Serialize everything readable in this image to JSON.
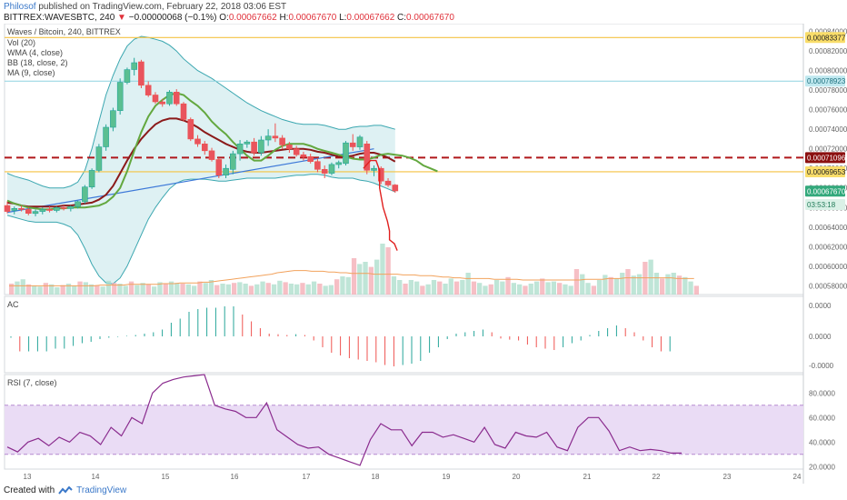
{
  "header": {
    "author": "Philosof",
    "published": "published on TradingView.com, February 22, 2018 03:06 EST",
    "symbol_line": "BITTREX:WAVESBTC, 240",
    "change": "−0.00000068 (−0.1%)",
    "open_label": "O:",
    "open": "0.00067662",
    "high_label": "H:",
    "high": "0.00067670",
    "low_label": "L:",
    "low": "0.00067662",
    "close_label": "C:",
    "close": "0.00067670"
  },
  "footer": {
    "created_with": "Created with",
    "brand": "TradingView"
  },
  "colors": {
    "up": "#26a69a",
    "down": "#ef5350",
    "upFill": "#5bbf91",
    "downFill": "#e9545d",
    "bbFill": "#d6eef0",
    "bbLine": "#3ba7b0",
    "wma": "#63a83f",
    "ma": "#8b1a1a",
    "trend": "#3c78d8",
    "hline": "#f5c242",
    "red": "#e0201f",
    "rsiBand": "#eadcf5",
    "rsiLine": "#8a2b8e"
  },
  "chart_data": [
    {
      "type": "candlestick",
      "title": "Waves / Bitcoin, 240, BITTREX",
      "legend": [
        "Vol (20)",
        "WMA (4, close)",
        "BB (18, close, 2)",
        "MA (9, close)"
      ],
      "x_ticks": [
        "13",
        "14",
        "15",
        "16",
        "17",
        "18",
        "19",
        "20",
        "21",
        "22",
        "23",
        "24"
      ],
      "y_ticks": [
        "0.00084000",
        "0.00082000",
        "0.00080000",
        "0.00078000",
        "0.00076000",
        "0.00074000",
        "0.00072000",
        "0.00070000",
        "0.00068000",
        "0.00066000",
        "0.00064000",
        "0.00062000",
        "0.00060000",
        "0.00058000"
      ],
      "ylim": [
        0.000571,
        0.000848
      ],
      "price_tags": [
        {
          "value": 0.00083377,
          "text": "0.00083377",
          "style": "yellow"
        },
        {
          "value": 0.00078923,
          "text": "0.00078923",
          "style": "cyan"
        },
        {
          "value": 0.00071096,
          "text": "0.00071096",
          "style": "darkred"
        },
        {
          "value": 0.00069653,
          "text": "0.00069653",
          "style": "yellow"
        },
        {
          "value": 0.0006767,
          "text": "0.00067670",
          "style": "green"
        },
        {
          "value": 0.000663,
          "text": "03:53:18",
          "style": "greenlight"
        }
      ],
      "hlines": [
        {
          "value": 0.00083377,
          "style": "yellow"
        },
        {
          "value": 0.00078923,
          "style": "cyan"
        },
        {
          "value": 0.00071096,
          "style": "dash"
        },
        {
          "value": 0.00069653,
          "style": "yellow"
        }
      ],
      "trendline": {
        "from": [
          0,
          0.000655
        ],
        "to": [
          52,
          0.00072
        ]
      },
      "forecast": [
        [
          50.5,
          0.0007
        ],
        [
          51.5,
          0.000708
        ],
        [
          52.3,
          0.000708
        ],
        [
          52.8,
          0.000698
        ],
        [
          52.8,
          0.00068
        ],
        [
          53.3,
          0.00066
        ],
        [
          53.9,
          0.000646
        ],
        [
          54.2,
          0.000636
        ],
        [
          54.2,
          0.000627
        ],
        [
          54.9,
          0.000623
        ],
        [
          55.3,
          0.000616
        ]
      ],
      "candles": [
        {
          "o": 0.000662,
          "h": 0.000666,
          "l": 0.000654,
          "c": 0.000656
        },
        {
          "o": 0.000657,
          "h": 0.000661,
          "l": 0.000653,
          "c": 0.000659
        },
        {
          "o": 0.000659,
          "h": 0.000662,
          "l": 0.000656,
          "c": 0.000658
        },
        {
          "o": 0.000658,
          "h": 0.00066,
          "l": 0.000652,
          "c": 0.000654
        },
        {
          "o": 0.000654,
          "h": 0.000658,
          "l": 0.000651,
          "c": 0.000656
        },
        {
          "o": 0.000656,
          "h": 0.00066,
          "l": 0.000653,
          "c": 0.000658
        },
        {
          "o": 0.000658,
          "h": 0.000661,
          "l": 0.000655,
          "c": 0.000657
        },
        {
          "o": 0.000657,
          "h": 0.000661,
          "l": 0.000655,
          "c": 0.00066
        },
        {
          "o": 0.00066,
          "h": 0.000662,
          "l": 0.000657,
          "c": 0.000659
        },
        {
          "o": 0.000659,
          "h": 0.000662,
          "l": 0.000656,
          "c": 0.000661
        },
        {
          "o": 0.000661,
          "h": 0.000667,
          "l": 0.000659,
          "c": 0.000666
        },
        {
          "o": 0.000666,
          "h": 0.000683,
          "l": 0.000664,
          "c": 0.000681
        },
        {
          "o": 0.000681,
          "h": 0.0007,
          "l": 0.000679,
          "c": 0.000698
        },
        {
          "o": 0.000698,
          "h": 0.000725,
          "l": 0.000696,
          "c": 0.000722
        },
        {
          "o": 0.000722,
          "h": 0.000745,
          "l": 0.000718,
          "c": 0.000742
        },
        {
          "o": 0.000742,
          "h": 0.000762,
          "l": 0.000738,
          "c": 0.000759
        },
        {
          "o": 0.000759,
          "h": 0.000792,
          "l": 0.000755,
          "c": 0.000788
        },
        {
          "o": 0.000788,
          "h": 0.000803,
          "l": 0.000786,
          "c": 0.000801
        },
        {
          "o": 0.000801,
          "h": 0.000813,
          "l": 0.000795,
          "c": 0.000808
        },
        {
          "o": 0.000809,
          "h": 0.000811,
          "l": 0.000782,
          "c": 0.000785
        },
        {
          "o": 0.000785,
          "h": 0.000789,
          "l": 0.000773,
          "c": 0.000775
        },
        {
          "o": 0.000775,
          "h": 0.000778,
          "l": 0.000766,
          "c": 0.000768
        },
        {
          "o": 0.000768,
          "h": 0.000771,
          "l": 0.000763,
          "c": 0.000766
        },
        {
          "o": 0.000766,
          "h": 0.00078,
          "l": 0.000764,
          "c": 0.000778
        },
        {
          "o": 0.000778,
          "h": 0.000781,
          "l": 0.000764,
          "c": 0.000766
        },
        {
          "o": 0.000766,
          "h": 0.000768,
          "l": 0.000748,
          "c": 0.00075
        },
        {
          "o": 0.00075,
          "h": 0.000752,
          "l": 0.000728,
          "c": 0.00073
        },
        {
          "o": 0.00073,
          "h": 0.000734,
          "l": 0.000722,
          "c": 0.000725
        },
        {
          "o": 0.000725,
          "h": 0.000728,
          "l": 0.000714,
          "c": 0.000718
        },
        {
          "o": 0.000718,
          "h": 0.000721,
          "l": 0.000707,
          "c": 0.000709
        },
        {
          "o": 0.000709,
          "h": 0.000711,
          "l": 0.00069,
          "c": 0.000693
        },
        {
          "o": 0.000693,
          "h": 0.000704,
          "l": 0.00069,
          "c": 0.0007
        },
        {
          "o": 0.000699,
          "h": 0.000718,
          "l": 0.000694,
          "c": 0.000715
        },
        {
          "o": 0.000715,
          "h": 0.000729,
          "l": 0.000708,
          "c": 0.000725
        },
        {
          "o": 0.000725,
          "h": 0.000729,
          "l": 0.000721,
          "c": 0.000727
        },
        {
          "o": 0.000727,
          "h": 0.000731,
          "l": 0.000713,
          "c": 0.000716
        },
        {
          "o": 0.000716,
          "h": 0.000733,
          "l": 0.000713,
          "c": 0.000729
        },
        {
          "o": 0.000729,
          "h": 0.00074,
          "l": 0.000723,
          "c": 0.000733
        },
        {
          "o": 0.000733,
          "h": 0.000746,
          "l": 0.000727,
          "c": 0.000731
        },
        {
          "o": 0.000731,
          "h": 0.000734,
          "l": 0.00072,
          "c": 0.000724
        },
        {
          "o": 0.000724,
          "h": 0.000727,
          "l": 0.000716,
          "c": 0.00072
        },
        {
          "o": 0.00072,
          "h": 0.000723,
          "l": 0.000712,
          "c": 0.000714
        },
        {
          "o": 0.000714,
          "h": 0.000717,
          "l": 0.000708,
          "c": 0.000712
        },
        {
          "o": 0.000712,
          "h": 0.000715,
          "l": 0.000705,
          "c": 0.000707
        },
        {
          "o": 0.000707,
          "h": 0.00071,
          "l": 0.000696,
          "c": 0.000699
        },
        {
          "o": 0.000699,
          "h": 0.000703,
          "l": 0.00069,
          "c": 0.000695
        },
        {
          "o": 0.000695,
          "h": 0.000706,
          "l": 0.000693,
          "c": 0.000704
        },
        {
          "o": 0.000704,
          "h": 0.000708,
          "l": 0.0007,
          "c": 0.000706
        },
        {
          "o": 0.000705,
          "h": 0.000728,
          "l": 0.000703,
          "c": 0.000726
        },
        {
          "o": 0.000726,
          "h": 0.000735,
          "l": 0.000718,
          "c": 0.000722
        },
        {
          "o": 0.000722,
          "h": 0.000734,
          "l": 0.000719,
          "c": 0.000732
        },
        {
          "o": 0.000725,
          "h": 0.000728,
          "l": 0.000694,
          "c": 0.000698
        },
        {
          "o": 0.000698,
          "h": 0.000703,
          "l": 0.000692,
          "c": 0.0007
        },
        {
          "o": 0.0007,
          "h": 0.000702,
          "l": 0.000684,
          "c": 0.000687
        },
        {
          "o": 0.000687,
          "h": 0.00069,
          "l": 0.000681,
          "c": 0.000683
        },
        {
          "o": 0.000683,
          "h": 0.000684,
          "l": 0.000675,
          "c": 0.000677
        }
      ],
      "volume": [
        15,
        18,
        21,
        14,
        12,
        11,
        16,
        14,
        10,
        13,
        15,
        12,
        18,
        17,
        14,
        13,
        11,
        19,
        16,
        15,
        12,
        18,
        13,
        16,
        14,
        11,
        17,
        15,
        18,
        16,
        15,
        14,
        12,
        18,
        16,
        20,
        13,
        15,
        14,
        16,
        17,
        15,
        12,
        14,
        18,
        16,
        14,
        19,
        17,
        15,
        14,
        16,
        14,
        18,
        15,
        12,
        13,
        21,
        25,
        24,
        50,
        42,
        45,
        38,
        48,
        70,
        65,
        25,
        20,
        15,
        20,
        18,
        12,
        14,
        20,
        18,
        15,
        22,
        18,
        20,
        30,
        18,
        16,
        12,
        14,
        20,
        18,
        24,
        16,
        14,
        12,
        15,
        18,
        22,
        17,
        18,
        16,
        14,
        12,
        35,
        28,
        16,
        12,
        20,
        27,
        24,
        22,
        30,
        35,
        26,
        28,
        45,
        48,
        30,
        22,
        28,
        30,
        26,
        24,
        18,
        12
      ],
      "volume_ma": [
        12,
        12,
        12,
        12,
        12,
        12,
        12,
        12,
        12,
        12,
        12,
        12,
        12,
        12,
        12,
        12,
        13,
        13,
        13,
        13,
        13,
        14,
        14,
        14,
        14,
        14,
        14,
        15,
        15,
        15,
        16,
        16,
        16,
        16,
        17,
        17,
        18,
        19,
        20,
        21,
        22,
        23,
        24,
        25,
        26,
        27,
        28,
        30,
        31,
        32,
        33,
        33,
        33,
        32,
        32,
        32,
        31,
        31,
        30,
        30,
        29,
        29,
        29,
        29,
        28,
        28,
        28,
        28,
        28,
        27,
        27,
        27,
        26,
        26,
        26,
        25,
        24,
        24,
        23,
        23,
        22,
        22,
        22,
        22,
        22,
        21,
        21,
        21,
        21,
        21,
        20,
        20,
        20,
        20,
        20,
        20,
        20,
        20,
        20,
        20,
        20,
        21,
        21,
        21,
        21,
        22,
        22,
        22,
        23,
        23,
        23,
        23,
        23,
        23,
        23,
        23,
        23,
        22,
        22,
        22,
        22
      ],
      "wma": [
        0.000667,
        0.000664,
        0.000662,
        0.00066,
        0.000659,
        0.000658,
        0.000658,
        0.000659,
        0.000659,
        0.00066,
        0.00066,
        0.00066,
        0.000661,
        0.000662,
        0.000665,
        0.000671,
        0.00068,
        0.000697,
        0.000718,
        0.000737,
        0.000753,
        0.000764,
        0.00077,
        0.000775,
        0.000777,
        0.000775,
        0.000769,
        0.000764,
        0.000757,
        0.000748,
        0.000741,
        0.000735,
        0.000727,
        0.00072,
        0.000713,
        0.000708,
        0.000708,
        0.000713,
        0.000719,
        0.000723,
        0.000725,
        0.000725,
        0.000725,
        0.000723,
        0.00072,
        0.000718,
        0.000716,
        0.000714,
        0.000712,
        0.00071,
        0.000709,
        0.000709,
        0.000711,
        0.000714,
        0.000715,
        0.000714,
        0.000713,
        0.000711,
        0.000708,
        0.000703,
        0.0007,
        0.000697
      ],
      "ma": [
        0.000665,
        0.000664,
        0.000662,
        0.000661,
        0.000661,
        0.000661,
        0.000661,
        0.000661,
        0.000662,
        0.000662,
        0.000663,
        0.000664,
        0.000665,
        0.000668,
        0.000673,
        0.000682,
        0.000695,
        0.000708,
        0.00072,
        0.00073,
        0.000738,
        0.000745,
        0.000749,
        0.000751,
        0.000751,
        0.000749,
        0.000746,
        0.000742,
        0.000737,
        0.000733,
        0.000729,
        0.000725,
        0.000722,
        0.000719,
        0.000717,
        0.000716,
        0.000716,
        0.000717,
        0.000718,
        0.000719,
        0.00072,
        0.00072,
        0.00072,
        0.000719,
        0.000717,
        0.000716,
        0.000714,
        0.000712,
        0.000712,
        0.000713,
        0.000715,
        0.000716,
        0.000716,
        0.000714,
        0.000711,
        0.000707
      ],
      "bb_upper": [
        0.000695,
        0.000692,
        0.00069,
        0.000688,
        0.000685,
        0.000682,
        0.00068,
        0.00068,
        0.00068,
        0.000682,
        0.000686,
        0.000698,
        0.00072,
        0.000748,
        0.000775,
        0.000795,
        0.000812,
        0.000825,
        0.000832,
        0.000835,
        0.000834,
        0.000832,
        0.00083,
        0.000826,
        0.00082,
        0.000812,
        0.000806,
        0.0008,
        0.000796,
        0.000792,
        0.000787,
        0.000782,
        0.000777,
        0.000772,
        0.000767,
        0.000763,
        0.000759,
        0.000756,
        0.000753,
        0.00075,
        0.000748,
        0.000746,
        0.000745,
        0.000745,
        0.000745,
        0.000744,
        0.000742,
        0.00074,
        0.00074,
        0.000742,
        0.000743,
        0.000743,
        0.000744,
        0.000744,
        0.000742,
        0.00074
      ],
      "bb_lower": [
        0.000652,
        0.00065,
        0.000648,
        0.000646,
        0.000645,
        0.000645,
        0.000645,
        0.000645,
        0.000643,
        0.00064,
        0.000632,
        0.000618,
        0.000602,
        0.00059,
        0.000583,
        0.000582,
        0.000588,
        0.0006,
        0.000616,
        0.000632,
        0.000648,
        0.00066,
        0.00067,
        0.000679,
        0.000685,
        0.000688,
        0.000689,
        0.000689,
        0.000689,
        0.000688,
        0.000687,
        0.000687,
        0.000688,
        0.000689,
        0.00069,
        0.00069,
        0.00069,
        0.00069,
        0.00069,
        0.000691,
        0.000692,
        0.000693,
        0.000693,
        0.000694,
        0.000694,
        0.000693,
        0.000691,
        0.00069,
        0.00069,
        0.00069,
        0.000688,
        0.000687,
        0.000685,
        0.000682,
        0.000679,
        0.000676
      ]
    },
    {
      "type": "bar",
      "title": "AC",
      "y_ticks": [
        "0.0000",
        "0.0000",
        "-0.0000"
      ],
      "ylim": [
        -1.1,
        1.1
      ],
      "values": [
        -0.05,
        -0.55,
        -0.55,
        -0.55,
        -0.55,
        -0.45,
        -0.45,
        -0.35,
        -0.25,
        -0.2,
        -0.1,
        -0.05,
        -0.02,
        0.02,
        0.05,
        0.1,
        0.15,
        0.25,
        0.5,
        0.65,
        0.9,
        1.0,
        1.05,
        1.05,
        1.1,
        1.1,
        0.8,
        0.55,
        0.3,
        0.1,
        0.08,
        0.05,
        0.08,
        0.05,
        -0.15,
        -0.4,
        -0.6,
        -0.7,
        -0.8,
        -0.85,
        -0.9,
        -0.95,
        -1.05,
        -1.1,
        -1.05,
        -1.0,
        -0.9,
        -0.6,
        -0.4,
        -0.1,
        0.1,
        0.15,
        0.2,
        0.25,
        0.15,
        -0.08,
        -0.12,
        -0.15,
        -0.3,
        -0.4,
        -0.45,
        -0.5,
        -0.4,
        -0.25,
        -0.15,
        0.05,
        0.2,
        0.3,
        0.4,
        0.3,
        0.15,
        -0.15,
        -0.4,
        -0.55,
        -0.55
      ]
    },
    {
      "type": "line",
      "title": "RSI (7, close)",
      "y_ticks": [
        "80.0000",
        "60.0000",
        "40.0000",
        "20.0000"
      ],
      "ylim": [
        18,
        95
      ],
      "band": [
        30,
        70
      ],
      "values": [
        36,
        32,
        40,
        43,
        37,
        44,
        40,
        48,
        45,
        38,
        52,
        45,
        60,
        55,
        80,
        88,
        91,
        93,
        94,
        95,
        70,
        67,
        65,
        60,
        60,
        72,
        50,
        44,
        38,
        35,
        36,
        30,
        27,
        24,
        21,
        42,
        55,
        50,
        50,
        37,
        48,
        48,
        44,
        46,
        43,
        40,
        52,
        38,
        35,
        48,
        45,
        44,
        48,
        36,
        33,
        52,
        60,
        60,
        49,
        33,
        36,
        33,
        34,
        33,
        31,
        31
      ]
    }
  ]
}
